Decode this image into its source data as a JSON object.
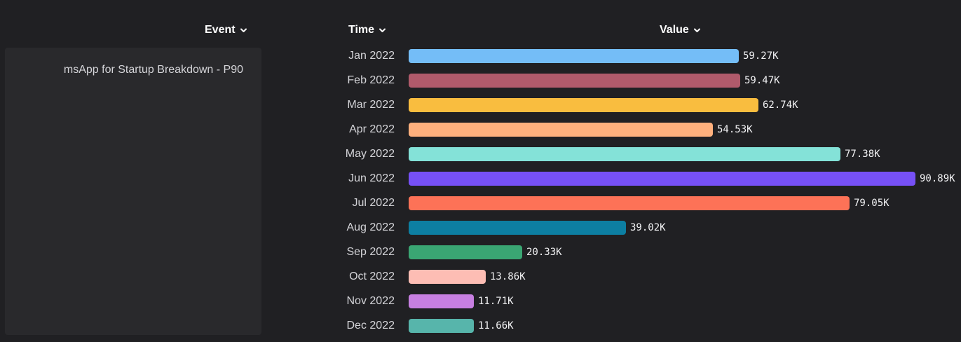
{
  "headers": {
    "event": "Event",
    "time": "Time",
    "value": "Value"
  },
  "event": {
    "label": "msApp for Startup Breakdown - P90"
  },
  "chart_data": {
    "type": "bar",
    "orientation": "horizontal",
    "categories": [
      "Jan 2022",
      "Feb 2022",
      "Mar 2022",
      "Apr 2022",
      "May 2022",
      "Jun 2022",
      "Jul 2022",
      "Aug 2022",
      "Sep 2022",
      "Oct 2022",
      "Nov 2022",
      "Dec 2022"
    ],
    "values": [
      59270,
      59470,
      62740,
      54530,
      77380,
      90890,
      79050,
      39020,
      20330,
      13860,
      11710,
      11660
    ],
    "value_labels": [
      "59.27K",
      "59.47K",
      "62.74K",
      "54.53K",
      "77.38K",
      "90.89K",
      "79.05K",
      "39.02K",
      "20.33K",
      "13.86K",
      "11.71K",
      "11.66K"
    ],
    "colors": [
      "#74bdf7",
      "#b05a6b",
      "#f9bd3f",
      "#feb07d",
      "#84e2d8",
      "#7650f6",
      "#fd7257",
      "#0d7fa2",
      "#3aa673",
      "#fdbdb4",
      "#c77fe1",
      "#57b5ab"
    ],
    "xlim": [
      0,
      90890
    ],
    "grid": false,
    "legend": "none"
  }
}
